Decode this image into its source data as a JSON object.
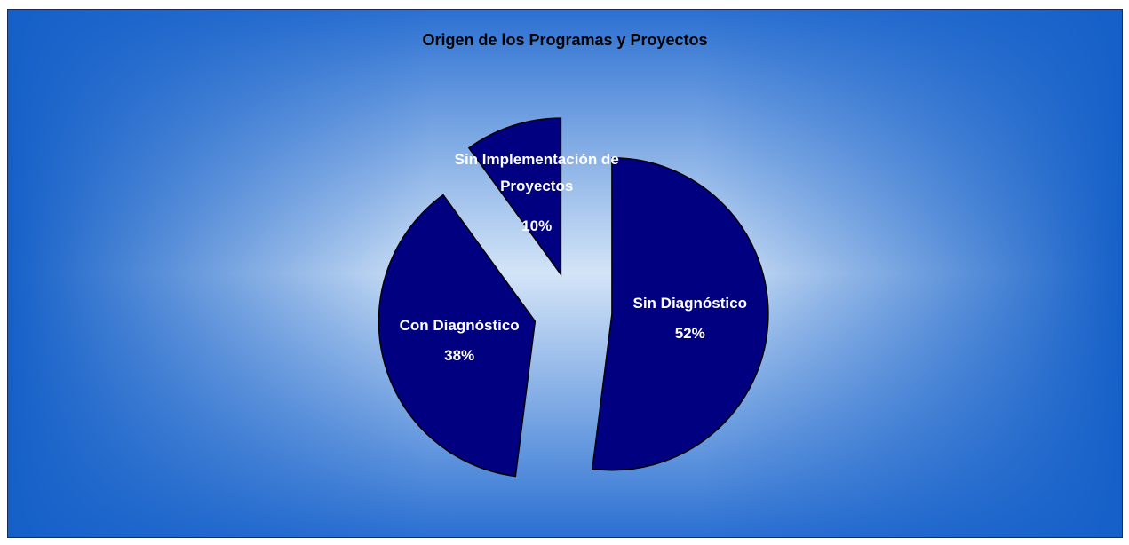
{
  "chart_data": {
    "type": "pie",
    "title": "Origen de los Programas y Proyectos",
    "categories": [
      "Sin Diagnóstico",
      "Con Diagnóstico",
      "Sin Implementación de Proyectos"
    ],
    "values": [
      52,
      38,
      10
    ],
    "value_labels": [
      "52%",
      "38%",
      "10%"
    ],
    "color": "#000080"
  }
}
